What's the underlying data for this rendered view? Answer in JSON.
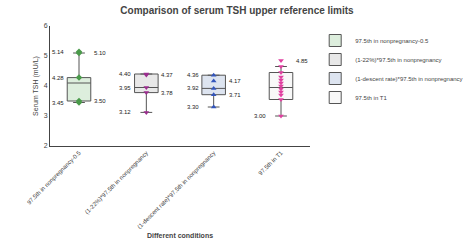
{
  "chart_data": {
    "type": "box",
    "title": "Comparison of serum TSH upper reference limits",
    "xlabel": "Different conditions",
    "ylabel": "Serum TSH (mU/L)",
    "categories": [
      "97.5th in nonpregnancy-0.5",
      "(1-22%)*97.5th in nonpregnancy",
      "(1-descent rate)*97.5th in nonpregnancy",
      "97.5th in T1"
    ],
    "ylim": [
      2,
      6
    ],
    "yticks": [
      2,
      3,
      4,
      5,
      6
    ],
    "grid": false,
    "legend": "upper right",
    "series": [
      {
        "name": "97.5th in nonpregnancy-0.5",
        "color": "#ddeedd",
        "q1": 3.5,
        "median": 4.1,
        "q3": 4.28,
        "whisker_low": 3.45,
        "whisker_high": 5.1,
        "points": {
          "values": [
            3.45,
            3.5,
            4.28,
            5.1,
            5.14
          ],
          "color": "#4a9a4a",
          "marker": "diamond"
        },
        "annotations": [
          {
            "value": 3.45,
            "label": "3.45"
          },
          {
            "value": 3.5,
            "label": "3.50"
          },
          {
            "value": 4.28,
            "label": "4.28"
          },
          {
            "value": 5.1,
            "label": "5.10"
          },
          {
            "value": 5.14,
            "label": "5.14"
          }
        ]
      },
      {
        "name": "(1-22%)*97.5th in nonpregnancy",
        "color": "#e8e8e8",
        "q1": 3.78,
        "median": 3.95,
        "q3": 4.4,
        "whisker_low": 3.12,
        "whisker_high": 4.37,
        "points": {
          "values": [
            3.12,
            3.78,
            3.95,
            4.37,
            4.4
          ],
          "color": "#9b2d8e",
          "marker": "triangle-down"
        },
        "annotations": [
          {
            "value": 3.12,
            "label": "3.12"
          },
          {
            "value": 3.78,
            "label": "3.78"
          },
          {
            "value": 3.95,
            "label": "3.95"
          },
          {
            "value": 4.37,
            "label": "4.37"
          },
          {
            "value": 4.4,
            "label": "4.40"
          }
        ]
      },
      {
        "name": "(1-descent rate)*97.5th in nonpregnancy",
        "color": "#dde4f0",
        "q1": 3.71,
        "median": 3.92,
        "q3": 4.36,
        "whisker_low": 3.3,
        "whisker_high": 4.17,
        "points": {
          "values": [
            3.3,
            3.71,
            3.92,
            4.17,
            4.36
          ],
          "color": "#3355bb",
          "marker": "triangle-up"
        },
        "annotations": [
          {
            "value": 3.3,
            "label": "3.30"
          },
          {
            "value": 3.71,
            "label": "3.71"
          },
          {
            "value": 3.92,
            "label": "3.92"
          },
          {
            "value": 4.17,
            "label": "4.17"
          },
          {
            "value": 4.36,
            "label": "4.36"
          }
        ]
      },
      {
        "name": "97.5th in T1",
        "color": "#f8f8f8",
        "q1": 3.55,
        "median": 3.95,
        "q3": 4.45,
        "whisker_low": 3.0,
        "whisker_high": 4.65,
        "points": {
          "values": [
            3.0,
            3.55,
            3.7,
            3.8,
            3.9,
            4.0,
            4.1,
            4.2,
            4.3,
            4.45,
            4.65,
            4.85
          ],
          "color": "#e040a0",
          "marker": "triangle-down"
        },
        "annotations": [
          {
            "value": 3.0,
            "label": "3.00"
          },
          {
            "value": 4.85,
            "label": "4.85"
          }
        ]
      }
    ]
  }
}
